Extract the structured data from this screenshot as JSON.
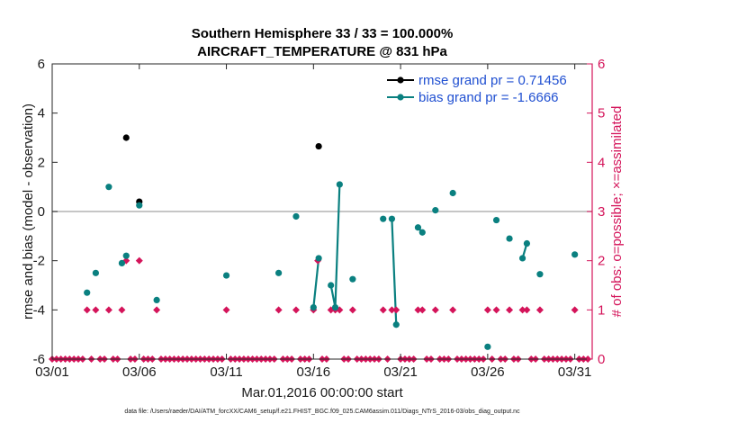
{
  "chart_data": {
    "type": "scatter",
    "title_line1": "Southern Hemisphere 33 / 33 = 100.000%",
    "title_line2": "AIRCRAFT_TEMPERATURE @ 831 hPa",
    "xlabel": "Mar.01,2016 00:00:00 start",
    "ylabel_left": "rmse and bias (model - observation)",
    "ylabel_right": "# of obs: o=possible; ×=assimilated",
    "footnote": "data file: /Users/raeder/DAI/ATM_forcXX/CAM6_setup/f.e21.FHIST_BGC.f09_025.CAM6assim.011/Diags_NTrS_2016-03/obs_diag_output.nc",
    "xlim": [
      1,
      32
    ],
    "ylim_left": [
      -6,
      6
    ],
    "ylim_right": [
      0,
      6
    ],
    "x_ticks": [
      1,
      6,
      11,
      16,
      21,
      26,
      31
    ],
    "x_tick_labels": [
      "03/01",
      "03/06",
      "03/11",
      "03/16",
      "03/21",
      "03/26",
      "03/31"
    ],
    "y_left_ticks": [
      -6,
      -4,
      -2,
      0,
      2,
      4,
      6
    ],
    "y_left_tick_labels": [
      "-6",
      "-4",
      "-2",
      "0",
      "2",
      "4",
      "6"
    ],
    "y_right_ticks": [
      0,
      1,
      2,
      3,
      4,
      5,
      6
    ],
    "y_right_tick_labels": [
      "0",
      "1",
      "2",
      "3",
      "4",
      "5",
      "6"
    ],
    "colors": {
      "rmse": "#000000",
      "bias": "#0a8080",
      "obs": "#d4145a",
      "zero_line": "#b3b3b3",
      "legend_text": "#1f4fd1"
    },
    "series": [
      {
        "name": "rmse grand pr = 0.71456",
        "key": "rmse",
        "points": [
          [
            5.25,
            3.0
          ],
          [
            6.0,
            0.4
          ],
          [
            16.3,
            2.65
          ]
        ],
        "segments": []
      },
      {
        "name": "bias grand pr = -1.6666",
        "key": "bias",
        "points": [
          [
            3.0,
            -3.3
          ],
          [
            3.5,
            -2.5
          ],
          [
            4.25,
            1.0
          ],
          [
            5.0,
            -2.1
          ],
          [
            5.25,
            -1.8
          ],
          [
            6.0,
            0.25
          ],
          [
            7.0,
            -3.6
          ],
          [
            11.0,
            -2.6
          ],
          [
            14.0,
            -2.5
          ],
          [
            15.0,
            -0.2
          ],
          [
            16.0,
            -3.9
          ],
          [
            16.3,
            -1.9
          ],
          [
            17.0,
            -3.0
          ],
          [
            17.25,
            -3.9
          ],
          [
            17.5,
            1.1
          ],
          [
            18.25,
            -2.75
          ],
          [
            20.0,
            -0.3
          ],
          [
            20.5,
            -0.3
          ],
          [
            20.75,
            -4.6
          ],
          [
            22.0,
            -0.65
          ],
          [
            22.25,
            -0.85
          ],
          [
            23.0,
            0.05
          ],
          [
            24.0,
            0.75
          ],
          [
            26.0,
            -5.5
          ],
          [
            26.5,
            -0.35
          ],
          [
            27.25,
            -1.1
          ],
          [
            28.0,
            -1.9
          ],
          [
            28.25,
            -1.3
          ],
          [
            29.0,
            -2.55
          ],
          [
            31.0,
            -1.75
          ]
        ],
        "segments": [
          [
            [
              16.0,
              -3.9
            ],
            [
              16.3,
              -1.9
            ]
          ],
          [
            [
              17.0,
              -3.0
            ],
            [
              17.25,
              -3.9
            ],
            [
              17.5,
              1.1
            ]
          ],
          [
            [
              20.5,
              -0.3
            ],
            [
              20.75,
              -4.6
            ]
          ],
          [
            [
              22.0,
              -0.65
            ],
            [
              22.25,
              -0.85
            ]
          ],
          [
            [
              28.0,
              -1.9
            ],
            [
              28.25,
              -1.3
            ]
          ]
        ]
      }
    ],
    "obs_possible": [
      [
        1,
        0
      ],
      [
        1.25,
        0
      ],
      [
        1.5,
        0
      ],
      [
        1.75,
        0
      ],
      [
        2,
        0
      ],
      [
        2.25,
        0
      ],
      [
        2.5,
        0
      ],
      [
        2.75,
        0
      ],
      [
        3,
        1
      ],
      [
        3.25,
        0
      ],
      [
        3.5,
        1
      ],
      [
        3.75,
        0
      ],
      [
        4,
        0
      ],
      [
        4.25,
        1
      ],
      [
        4.5,
        0
      ],
      [
        4.75,
        0
      ],
      [
        5,
        1
      ],
      [
        5.25,
        2
      ],
      [
        5.5,
        0
      ],
      [
        5.75,
        0
      ],
      [
        6,
        2
      ],
      [
        6.25,
        0
      ],
      [
        6.5,
        0
      ],
      [
        6.75,
        0
      ],
      [
        7,
        1
      ],
      [
        7.25,
        0
      ],
      [
        7.5,
        0
      ],
      [
        7.75,
        0
      ],
      [
        8,
        0
      ],
      [
        8.25,
        0
      ],
      [
        8.5,
        0
      ],
      [
        8.75,
        0
      ],
      [
        9,
        0
      ],
      [
        9.25,
        0
      ],
      [
        9.5,
        0
      ],
      [
        9.75,
        0
      ],
      [
        10,
        0
      ],
      [
        10.25,
        0
      ],
      [
        10.5,
        0
      ],
      [
        10.75,
        0
      ],
      [
        11,
        1
      ],
      [
        11.25,
        0
      ],
      [
        11.5,
        0
      ],
      [
        11.75,
        0
      ],
      [
        12,
        0
      ],
      [
        12.25,
        0
      ],
      [
        12.5,
        0
      ],
      [
        12.75,
        0
      ],
      [
        13,
        0
      ],
      [
        13.25,
        0
      ],
      [
        13.5,
        0
      ],
      [
        13.75,
        0
      ],
      [
        14,
        1
      ],
      [
        14.25,
        0
      ],
      [
        14.5,
        0
      ],
      [
        14.75,
        0
      ],
      [
        15,
        1
      ],
      [
        15.25,
        0
      ],
      [
        15.5,
        0
      ],
      [
        15.75,
        0
      ],
      [
        16,
        1
      ],
      [
        16.25,
        2
      ],
      [
        16.5,
        0
      ],
      [
        16.75,
        0
      ],
      [
        17,
        1
      ],
      [
        17.25,
        1
      ],
      [
        17.5,
        1
      ],
      [
        17.75,
        0
      ],
      [
        18,
        0
      ],
      [
        18.25,
        1
      ],
      [
        18.5,
        0
      ],
      [
        18.75,
        0
      ],
      [
        19,
        0
      ],
      [
        19.25,
        0
      ],
      [
        19.5,
        0
      ],
      [
        19.75,
        0
      ],
      [
        20,
        1
      ],
      [
        20.25,
        0
      ],
      [
        20.5,
        1
      ],
      [
        20.75,
        1
      ],
      [
        21,
        0
      ],
      [
        21.25,
        0
      ],
      [
        21.5,
        0
      ],
      [
        21.75,
        0
      ],
      [
        22,
        1
      ],
      [
        22.25,
        1
      ],
      [
        22.5,
        0
      ],
      [
        22.75,
        0
      ],
      [
        23,
        1
      ],
      [
        23.25,
        0
      ],
      [
        23.5,
        0
      ],
      [
        23.75,
        0
      ],
      [
        24,
        1
      ],
      [
        24.25,
        0
      ],
      [
        24.5,
        0
      ],
      [
        24.75,
        0
      ],
      [
        25,
        0
      ],
      [
        25.25,
        0
      ],
      [
        25.5,
        0
      ],
      [
        25.75,
        0
      ],
      [
        26,
        1
      ],
      [
        26.25,
        0
      ],
      [
        26.5,
        1
      ],
      [
        26.75,
        0
      ],
      [
        27,
        0
      ],
      [
        27.25,
        1
      ],
      [
        27.5,
        0
      ],
      [
        27.75,
        0
      ],
      [
        28,
        1
      ],
      [
        28.25,
        1
      ],
      [
        28.5,
        0
      ],
      [
        28.75,
        0
      ],
      [
        29,
        1
      ],
      [
        29.25,
        0
      ],
      [
        29.5,
        0
      ],
      [
        29.75,
        0
      ],
      [
        30,
        0
      ],
      [
        30.25,
        0
      ],
      [
        30.5,
        0
      ],
      [
        30.75,
        0
      ],
      [
        31,
        1
      ],
      [
        31.25,
        0
      ],
      [
        31.5,
        0
      ],
      [
        31.75,
        0
      ]
    ]
  }
}
